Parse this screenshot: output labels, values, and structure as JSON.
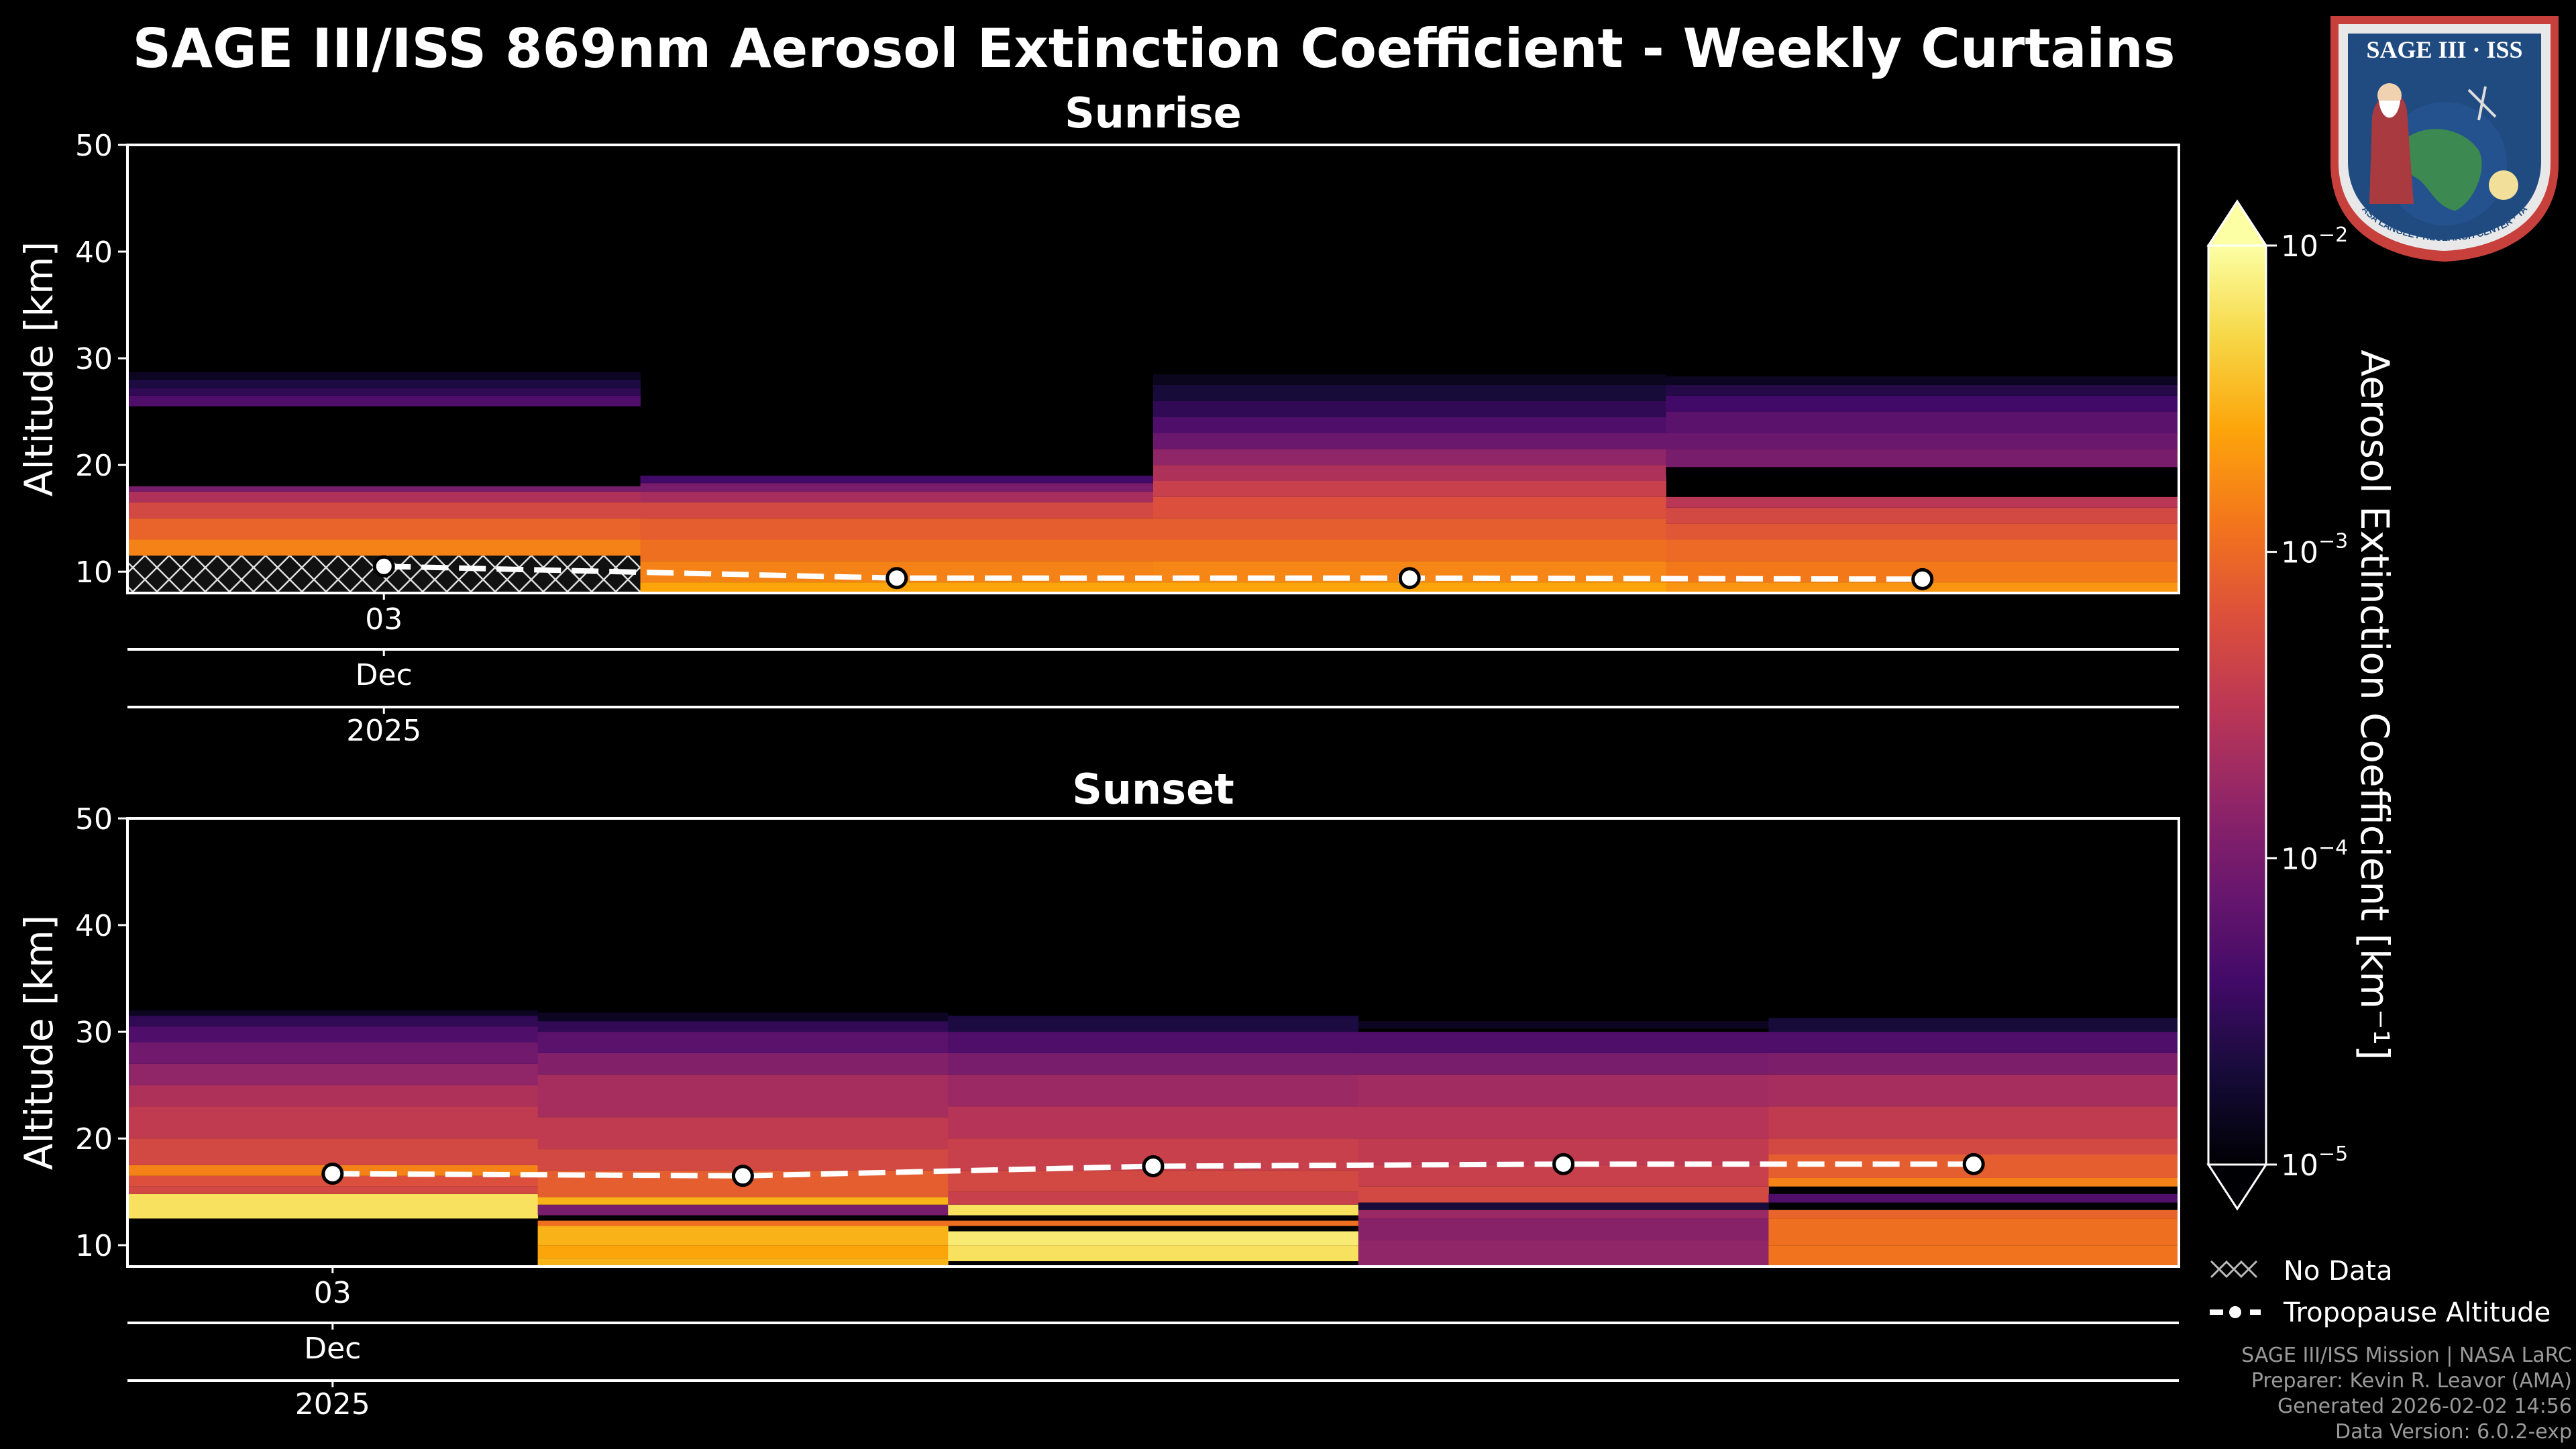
{
  "title": "SAGE III/ISS 869nm Aerosol Extinction Coefficient - Weekly Curtains",
  "logo": {
    "text": "SAGE III · ISS",
    "ring_text": "BALL · NASA LANGLEY RESEARCH CENTER · TAS-I · ESA"
  },
  "colorbar": {
    "label": "Aerosol Extinction Coefficient [km⁻¹]",
    "scale": "log",
    "colormap": "inferno",
    "range": [
      1e-05,
      0.01
    ],
    "ticks": [
      {
        "base": "10",
        "exp": "−2",
        "value": 0.01
      },
      {
        "base": "10",
        "exp": "−3",
        "value": 0.001
      },
      {
        "base": "10",
        "exp": "−4",
        "value": 0.0001
      },
      {
        "base": "10",
        "exp": "−5",
        "value": 1e-05
      }
    ]
  },
  "legend": {
    "no_data": "No Data",
    "tropopause": "Tropopause Altitude",
    "placement": "bottom-right"
  },
  "credits": [
    "SAGE III/ISS Mission | NASA LaRC",
    "Preparer: Kevin R. Leavor (AMA)",
    "Generated 2026-02-02 14:56",
    "Data Version: 6.0.2-exp"
  ],
  "colors": {
    "background": "#000000",
    "tropopause_line": "#ffffff",
    "hatch": "#ffffff",
    "credits_text": "#9a9a9a"
  },
  "chart_data": [
    {
      "type": "heatmap",
      "title": "Sunrise",
      "ylabel": "Altitude [km]",
      "ylim": [
        8,
        50
      ],
      "yticks": [
        "10",
        "20",
        "30",
        "40",
        "50"
      ],
      "xtick_labels": {
        "day": "03",
        "month": "Dec",
        "year": "2025"
      },
      "xtick_week": 0.5,
      "n_weeks": 4,
      "weeks": [
        {
          "no_data_below": 11.5,
          "bands": [
            [
              11.5,
              13,
              0.0015
            ],
            [
              13,
              15,
              0.0009
            ],
            [
              15,
              16.5,
              0.0005
            ],
            [
              16.5,
              17.5,
              0.00025
            ],
            [
              17.5,
              18,
              0.0001
            ],
            [
              25.5,
              26.5,
              5e-05
            ],
            [
              26.5,
              27.2,
              3e-05
            ],
            [
              27.2,
              28,
              2.2e-05
            ],
            [
              28,
              28.7,
              1.5e-05
            ]
          ]
        },
        {
          "bands": [
            [
              8,
              9,
              0.0025
            ],
            [
              9,
              11,
              0.0015
            ],
            [
              11,
              13,
              0.0011
            ],
            [
              13,
              15,
              0.0008
            ],
            [
              15,
              16.5,
              0.0005
            ],
            [
              16.5,
              17.5,
              0.00022
            ],
            [
              17.5,
              18.3,
              0.0001
            ],
            [
              18.3,
              19,
              4e-05
            ]
          ]
        },
        {
          "bands": [
            [
              8,
              9,
              0.0025
            ],
            [
              9,
              11,
              0.0016
            ],
            [
              11,
              13,
              0.0011
            ],
            [
              13,
              15,
              0.0008
            ],
            [
              15,
              17,
              0.0006
            ],
            [
              17,
              18.5,
              0.0004
            ],
            [
              18.5,
              20,
              0.00025
            ],
            [
              20,
              21.5,
              0.00015
            ],
            [
              21.5,
              23,
              8e-05
            ],
            [
              23,
              24.5,
              5e-05
            ],
            [
              24.5,
              26,
              3e-05
            ],
            [
              26,
              27.5,
              2e-05
            ],
            [
              27.5,
              28.5,
              1.4e-05
            ]
          ]
        },
        {
          "bands": [
            [
              8,
              9,
              0.002
            ],
            [
              9,
              11,
              0.0013
            ],
            [
              11,
              13,
              0.001
            ],
            [
              13,
              14.5,
              0.0007
            ],
            [
              14.5,
              16,
              0.0005
            ],
            [
              16,
              17,
              0.0003
            ],
            [
              19,
              19.8,
              1e-05
            ],
            [
              19.8,
              21.5,
              0.0001
            ],
            [
              21.5,
              23,
              8e-05
            ],
            [
              23,
              25,
              6e-05
            ],
            [
              25,
              26.5,
              4e-05
            ],
            [
              26.5,
              27.5,
              2.5e-05
            ],
            [
              27.5,
              28.3,
              1.5e-05
            ]
          ]
        }
      ],
      "tropopause": {
        "week_centers": [
          0.5,
          1.5,
          2.5,
          3.5
        ],
        "altitude_km": [
          10.5,
          9.4,
          9.4,
          9.3
        ]
      }
    },
    {
      "type": "heatmap",
      "title": "Sunset",
      "ylabel": "Altitude [km]",
      "ylim": [
        8,
        50
      ],
      "yticks": [
        "10",
        "20",
        "30",
        "40",
        "50"
      ],
      "xtick_labels": {
        "day": "03",
        "month": "Dec",
        "year": "2025"
      },
      "xtick_week": 0.5,
      "n_weeks": 5,
      "weeks": [
        {
          "bands": [
            [
              12.5,
              14.8,
              0.006
            ],
            [
              14.8,
              15.5,
              0.0005
            ],
            [
              15.5,
              16.5,
              0.0006
            ],
            [
              16.5,
              17.5,
              0.0015
            ],
            [
              17.5,
              20,
              0.0005
            ],
            [
              20,
              23,
              0.00035
            ],
            [
              23,
              25,
              0.00025
            ],
            [
              25,
              27,
              0.00015
            ],
            [
              27,
              29,
              9e-05
            ],
            [
              29,
              30.5,
              5e-05
            ],
            [
              30.5,
              31.5,
              3e-05
            ],
            [
              31.5,
              32,
              1.5e-05
            ]
          ]
        },
        {
          "bands": [
            [
              8,
              8.8,
              0.003
            ],
            [
              8.8,
              10,
              0.0025
            ],
            [
              10,
              11.8,
              0.003
            ],
            [
              11.8,
              12.3,
              0.0011
            ],
            [
              12.8,
              13.8,
              0.0001
            ],
            [
              13.8,
              14.5,
              0.003
            ],
            [
              14.5,
              17,
              0.0008
            ],
            [
              17,
              19,
              0.0005
            ],
            [
              19,
              22,
              0.00035
            ],
            [
              22,
              26,
              0.00022
            ],
            [
              26,
              28,
              0.00012
            ],
            [
              28,
              30,
              6e-05
            ],
            [
              30,
              31,
              3e-05
            ],
            [
              31,
              31.8,
              1.5e-05
            ]
          ]
        },
        {
          "bands": [
            [
              8.5,
              10,
              0.006
            ],
            [
              10,
              11.3,
              0.007
            ],
            [
              11.8,
              12.3,
              0.0011
            ],
            [
              12.8,
              13.8,
              0.006
            ],
            [
              13.8,
              15,
              0.0004
            ],
            [
              15,
              17,
              0.0005
            ],
            [
              17,
              20,
              0.0004
            ],
            [
              20,
              23,
              0.00028
            ],
            [
              23,
              26,
              0.00018
            ],
            [
              26,
              28,
              0.0001
            ],
            [
              28,
              30,
              5e-05
            ],
            [
              30,
              31.5,
              2.2e-05
            ]
          ]
        },
        {
          "bands": [
            [
              8,
              10.5,
              0.00015
            ],
            [
              10.5,
              12.5,
              0.00013
            ],
            [
              12.5,
              13.3,
              0.00018
            ],
            [
              13.3,
              14,
              2e-05
            ],
            [
              14,
              15.5,
              0.0005
            ],
            [
              15.5,
              17.5,
              0.0004
            ],
            [
              17.5,
              20,
              0.00035
            ],
            [
              20,
              23,
              0.00028
            ],
            [
              23,
              26,
              0.0002
            ],
            [
              26,
              28,
              0.0001
            ],
            [
              28,
              30,
              5e-05
            ],
            [
              30.3,
              31,
              1.5e-05
            ]
          ]
        },
        {
          "bands": [
            [
              8,
              10,
              0.0012
            ],
            [
              10,
              12.5,
              0.0011
            ],
            [
              12.5,
              13.3,
              0.0009
            ],
            [
              14,
              14.8,
              5e-05
            ],
            [
              15.5,
              16.3,
              0.0015
            ],
            [
              16.3,
              18.5,
              0.0008
            ],
            [
              18.5,
              20,
              0.0005
            ],
            [
              20,
              23,
              0.00035
            ],
            [
              23,
              26,
              0.00022
            ],
            [
              26,
              28,
              0.00011
            ],
            [
              28,
              30,
              5e-05
            ],
            [
              30,
              31.3,
              2e-05
            ]
          ]
        }
      ],
      "tropopause": {
        "week_centers": [
          0.5,
          1.5,
          2.5,
          3.5,
          4.5
        ],
        "altitude_km": [
          16.7,
          16.5,
          17.4,
          17.6,
          17.6
        ]
      }
    }
  ]
}
